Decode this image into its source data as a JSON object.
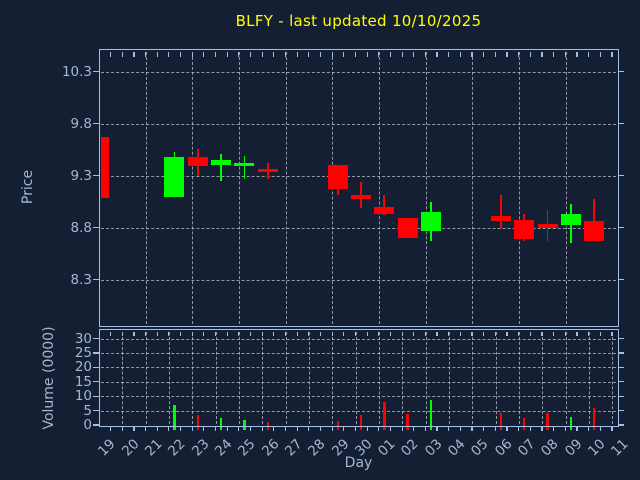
{
  "title": {
    "text": "BLFY - last updated 10/10/2025"
  },
  "colors": {
    "background": "#141f33",
    "axis": "#a2c0e8",
    "tick_label": "#a3b8d0",
    "grid": "#c8cdd5",
    "title": "#ffff00",
    "up": "#00ff00",
    "down": "#ff0000"
  },
  "chart_data": [
    {
      "type": "candlestick",
      "title": "BLFY - last updated 10/10/2025",
      "ylabel": "Price",
      "yticks": [
        10.3,
        9.8,
        9.3,
        8.8,
        8.3
      ],
      "ylim": [
        7.87,
        10.51
      ],
      "grid": true,
      "x_categories": [
        "19",
        "20",
        "21",
        "22",
        "23",
        "24",
        "25",
        "26",
        "27",
        "28",
        "29",
        "30",
        "01",
        "02",
        "03",
        "04",
        "05",
        "06",
        "07",
        "08",
        "09",
        "10",
        "11"
      ],
      "candles": [
        {
          "day": "19",
          "i": 0,
          "open": 9.67,
          "high": 9.67,
          "low": 9.09,
          "close": 9.09,
          "w": 8
        },
        {
          "day": "22",
          "i": 3,
          "open": 9.1,
          "high": 9.53,
          "low": 9.1,
          "close": 9.48
        },
        {
          "day": "23",
          "i": 4,
          "open": 9.48,
          "high": 9.56,
          "low": 9.3,
          "close": 9.39
        },
        {
          "day": "24",
          "i": 5,
          "open": 9.4,
          "high": 9.51,
          "low": 9.25,
          "close": 9.45
        },
        {
          "day": "25",
          "i": 6,
          "open": 9.4,
          "high": 9.49,
          "low": 9.27,
          "close": 9.42
        },
        {
          "day": "26",
          "i": 7,
          "open": 9.37,
          "high": 9.42,
          "low": 9.27,
          "close": 9.34
        },
        {
          "day": "29",
          "i": 10,
          "open": 9.4,
          "high": 9.4,
          "low": 9.12,
          "close": 9.17
        },
        {
          "day": "30",
          "i": 11,
          "open": 9.12,
          "high": 9.24,
          "low": 8.99,
          "close": 9.08
        },
        {
          "day": "01",
          "i": 12,
          "open": 9.0,
          "high": 9.12,
          "low": 8.92,
          "close": 8.93
        },
        {
          "day": "02",
          "i": 13,
          "open": 8.89,
          "high": 8.89,
          "low": 8.7,
          "close": 8.7
        },
        {
          "day": "03",
          "i": 14,
          "open": 8.77,
          "high": 9.05,
          "low": 8.67,
          "close": 8.95
        },
        {
          "day": "06",
          "i": 17,
          "open": 8.91,
          "high": 9.12,
          "low": 8.8,
          "close": 8.87
        },
        {
          "day": "07",
          "i": 18,
          "open": 8.88,
          "high": 8.93,
          "low": 8.67,
          "close": 8.69
        },
        {
          "day": "08",
          "i": 19,
          "open": 8.84,
          "high": 8.97,
          "low": 8.67,
          "close": 8.8
        },
        {
          "day": "09",
          "i": 20,
          "open": 8.83,
          "high": 9.03,
          "low": 8.65,
          "close": 8.93
        },
        {
          "day": "10",
          "i": 21,
          "open": 8.87,
          "high": 9.08,
          "low": 8.67,
          "close": 8.67
        }
      ]
    },
    {
      "type": "bar",
      "ylabel": "Volume (0000)",
      "xlabel": "Day",
      "yticks": [
        30,
        25,
        20,
        15,
        10,
        5,
        0
      ],
      "ylim": [
        0,
        33
      ],
      "grid": true,
      "bars": [
        {
          "day": "19",
          "i": 0,
          "value": 0.0
        },
        {
          "day": "22",
          "i": 3,
          "value": 6.9
        },
        {
          "day": "23",
          "i": 4,
          "value": 3.5
        },
        {
          "day": "24",
          "i": 5,
          "value": 2.4
        },
        {
          "day": "25",
          "i": 6,
          "value": 1.7
        },
        {
          "day": "26",
          "i": 7,
          "value": 1.1
        },
        {
          "day": "29",
          "i": 10,
          "value": 1.3
        },
        {
          "day": "30",
          "i": 11,
          "value": 3.5
        },
        {
          "day": "01",
          "i": 12,
          "value": 8.0
        },
        {
          "day": "02",
          "i": 13,
          "value": 3.7
        },
        {
          "day": "03",
          "i": 14,
          "value": 8.7
        },
        {
          "day": "06",
          "i": 17,
          "value": 4.0
        },
        {
          "day": "07",
          "i": 18,
          "value": 2.5
        },
        {
          "day": "08",
          "i": 19,
          "value": 4.0
        },
        {
          "day": "09",
          "i": 20,
          "value": 2.9
        },
        {
          "day": "10",
          "i": 21,
          "value": 6.0
        }
      ]
    }
  ]
}
